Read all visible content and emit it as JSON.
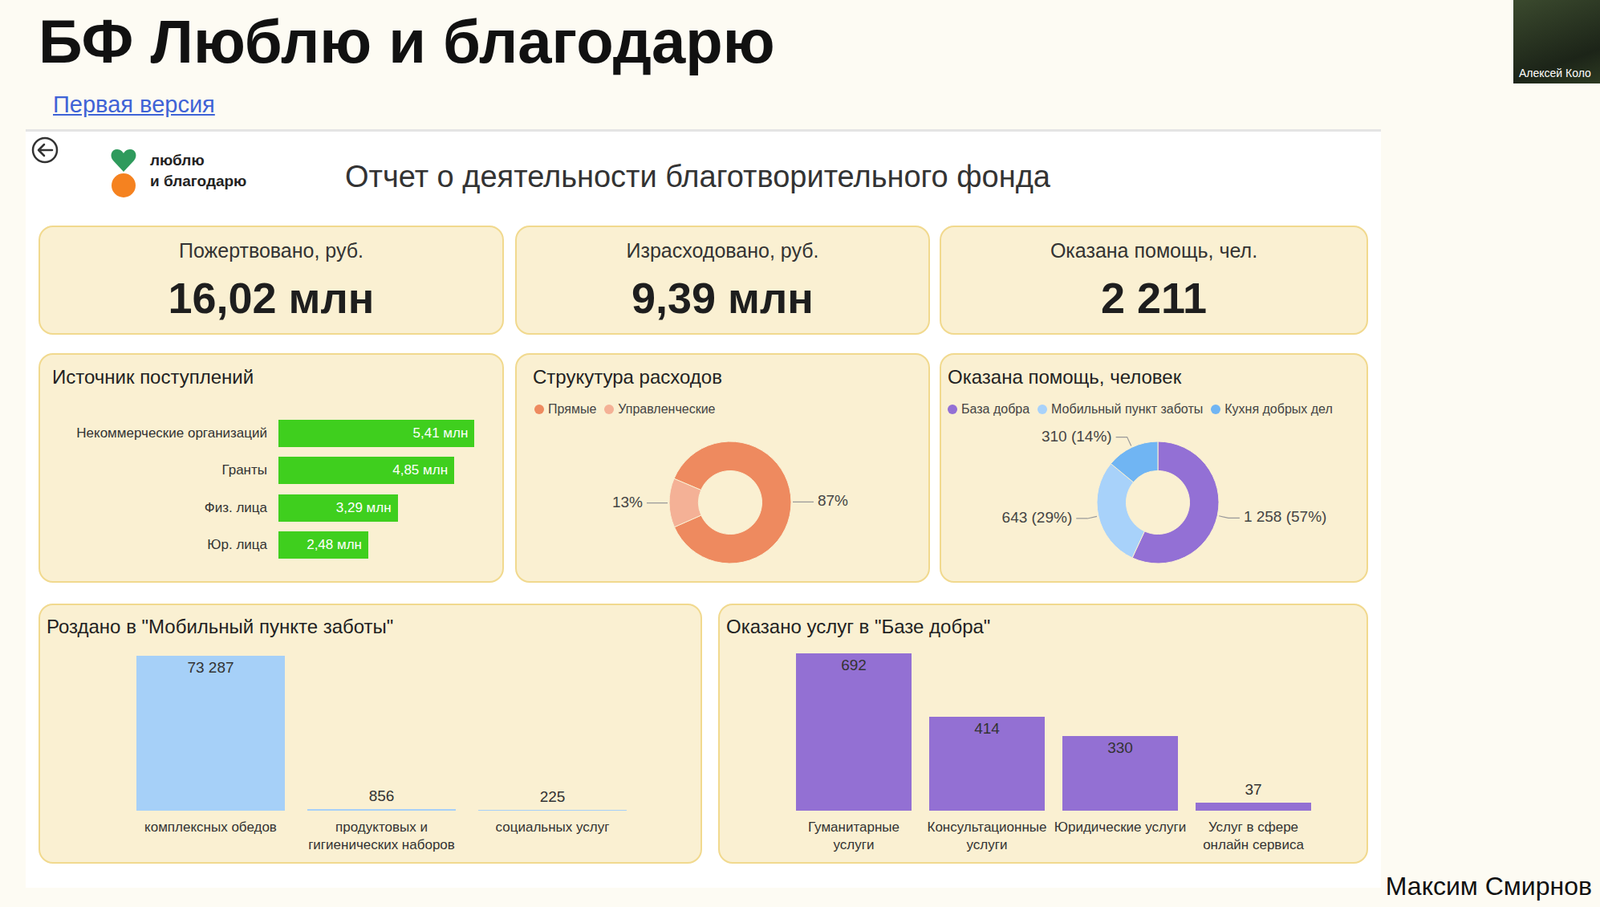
{
  "slide": {
    "title": "БФ Люблю и благодарю",
    "link": "Первая версия",
    "participant": "Алексей Коло",
    "speaker": "Максим Смирнов"
  },
  "dashboard": {
    "logo": [
      "люблю",
      "и благодарю"
    ],
    "title": "Отчет о деятельности благотворительного фонда",
    "kpis": [
      {
        "label": "Пожертвовано, руб.",
        "value": "16,02 млн"
      },
      {
        "label": "Израсходовано, руб.",
        "value": "9,39 млн"
      },
      {
        "label": "Оказана помощь, чел.",
        "value": "2 211"
      }
    ]
  },
  "chart_data": [
    {
      "type": "bar",
      "orientation": "horizontal",
      "title": "Источник поступлений",
      "categories": [
        "Некоммерческие организаций",
        "Гранты",
        "Физ. лица",
        "Юр. лица"
      ],
      "values": [
        5.41,
        4.85,
        3.29,
        2.48
      ],
      "value_labels": [
        "5,41 млн",
        "4,85 млн",
        "3,29 млн",
        "2,48 млн"
      ],
      "color": "#3fcf1e",
      "xlim": [
        0,
        6
      ],
      "tick_labels": "y",
      "data_labels": true
    },
    {
      "type": "donut",
      "title": "Струкутура расходов",
      "categories": [
        "Прямые",
        "Управленческие"
      ],
      "values": [
        87,
        13
      ],
      "value_labels": [
        "87%",
        "13%"
      ],
      "colors": [
        "#ee8a5f",
        "#f4b196"
      ],
      "legend": "top",
      "data_labels": true
    },
    {
      "type": "donut",
      "title": "Оказана помощь, человек",
      "categories": [
        "База добра",
        "Мобильный пункт заботы",
        "Кухня добрых дел"
      ],
      "values": [
        1258,
        643,
        310
      ],
      "value_labels": [
        "1 258 (57%)",
        "643 (29%)",
        "310 (14%)"
      ],
      "colors": [
        "#9370d5",
        "#a8d2fa",
        "#70b5f3"
      ],
      "legend": "top",
      "data_labels": true
    },
    {
      "type": "bar",
      "title": "Роздано в \"Мобильный пункте заботы\"",
      "categories": [
        "комплексных обедов",
        "продуктовых и гигиенических наборов",
        "социальных услуг"
      ],
      "values": [
        73287,
        856,
        225
      ],
      "value_labels": [
        "73 287",
        "856",
        "225"
      ],
      "color": "#a6d0f8",
      "ylim": [
        0,
        75000
      ],
      "tick_labels": "x",
      "data_labels": true
    },
    {
      "type": "bar",
      "title": "Оказано услуг в \"Базе добра\"",
      "categories": [
        "Гуманитарные услуги",
        "Консультационные услуги",
        "Юридические услуги",
        "Услуг в сфере онлайн сервиса"
      ],
      "values": [
        692,
        414,
        330,
        37
      ],
      "color": "#9370d3",
      "ylim": [
        0,
        700
      ],
      "tick_labels": "x",
      "data_labels": true
    }
  ]
}
